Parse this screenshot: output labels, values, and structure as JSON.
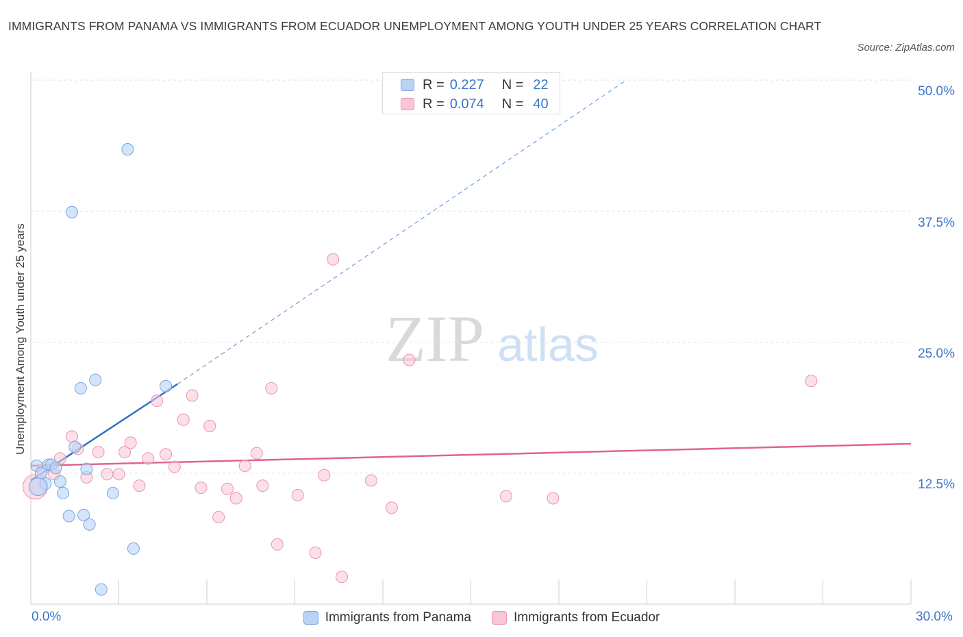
{
  "title": "IMMIGRANTS FROM PANAMA VS IMMIGRANTS FROM ECUADOR UNEMPLOYMENT AMONG YOUTH UNDER 25 YEARS CORRELATION CHART",
  "source": "Source: ZipAtlas.com",
  "watermark": {
    "zip": "ZIP",
    "atlas": "atlas"
  },
  "colors": {
    "panama_fill": "#b9d3f5",
    "panama_stroke": "#7aa6e0",
    "panama_line": "#2f6fc8",
    "ecuador_fill": "#f8c6d5",
    "ecuador_stroke": "#ec94b1",
    "ecuador_line": "#e0638f",
    "accent_text": "#3b74c9"
  },
  "legend": {
    "rows": [
      {
        "r_label": "R = ",
        "r_value": "0.227",
        "n_label": "N = ",
        "n_value": "22"
      },
      {
        "r_label": "R = ",
        "r_value": "0.074",
        "n_label": "N = ",
        "n_value": "40"
      }
    ]
  },
  "chart_data": {
    "type": "scatter",
    "title": "IMMIGRANTS FROM PANAMA VS IMMIGRANTS FROM ECUADOR UNEMPLOYMENT AMONG YOUTH UNDER 25 YEARS CORRELATION CHART",
    "xlabel": "",
    "ylabel": "Unemployment Among Youth under 25 years",
    "xlim": [
      0,
      30
    ],
    "ylim": [
      0,
      50
    ],
    "x_tick_labels": {
      "min": "0.0%",
      "max": "30.0%"
    },
    "y_ticks": [
      {
        "value": 12.5,
        "label": "12.5%"
      },
      {
        "value": 25,
        "label": "25.0%"
      },
      {
        "value": 37.5,
        "label": "37.5%"
      },
      {
        "value": 50,
        "label": "50.0%"
      }
    ],
    "legend_position": "bottom",
    "series": [
      {
        "name": "Immigrants from Panama",
        "R": 0.227,
        "N": 22,
        "trend": {
          "x0": 0,
          "y0": 11.8,
          "x1": 5.0,
          "y1": 21.0,
          "dashed_to_x": 20.3,
          "dashed_to_y": 50.0
        },
        "points": [
          [
            0.2,
            13.2
          ],
          [
            0.35,
            12.5
          ],
          [
            0.5,
            11.5
          ],
          [
            0.6,
            13.3
          ],
          [
            0.7,
            13.3
          ],
          [
            0.85,
            13.0
          ],
          [
            1.0,
            11.7
          ],
          [
            1.1,
            10.6
          ],
          [
            1.3,
            8.4
          ],
          [
            1.5,
            15.0
          ],
          [
            1.7,
            20.6
          ],
          [
            1.8,
            8.5
          ],
          [
            1.9,
            12.9
          ],
          [
            2.0,
            7.6
          ],
          [
            2.2,
            21.4
          ],
          [
            2.4,
            1.4
          ],
          [
            2.8,
            10.6
          ],
          [
            3.3,
            43.4
          ],
          [
            3.5,
            5.3
          ],
          [
            4.6,
            20.8
          ],
          [
            1.4,
            37.4
          ],
          [
            0.25,
            11.2
          ]
        ]
      },
      {
        "name": "Immigrants from Ecuador",
        "R": 0.074,
        "N": 40,
        "trend": {
          "x0": 0,
          "y0": 13.2,
          "x1": 30,
          "y1": 15.3
        },
        "points": [
          [
            0.15,
            11.2
          ],
          [
            0.8,
            12.4
          ],
          [
            1.0,
            13.9
          ],
          [
            1.4,
            16.0
          ],
          [
            1.6,
            14.8
          ],
          [
            1.9,
            12.1
          ],
          [
            2.3,
            14.5
          ],
          [
            2.6,
            12.4
          ],
          [
            3.0,
            12.4
          ],
          [
            3.2,
            14.5
          ],
          [
            3.4,
            15.4
          ],
          [
            3.7,
            11.3
          ],
          [
            4.0,
            13.9
          ],
          [
            4.3,
            19.4
          ],
          [
            4.6,
            14.3
          ],
          [
            4.9,
            13.1
          ],
          [
            5.2,
            17.6
          ],
          [
            5.5,
            19.9
          ],
          [
            5.8,
            11.1
          ],
          [
            6.1,
            17.0
          ],
          [
            6.4,
            8.3
          ],
          [
            6.7,
            11.0
          ],
          [
            7.0,
            10.1
          ],
          [
            7.3,
            13.2
          ],
          [
            7.7,
            14.4
          ],
          [
            7.9,
            11.3
          ],
          [
            8.2,
            20.6
          ],
          [
            8.4,
            5.7
          ],
          [
            9.1,
            10.4
          ],
          [
            9.7,
            4.9
          ],
          [
            10.0,
            12.3
          ],
          [
            10.3,
            32.9
          ],
          [
            10.6,
            2.6
          ],
          [
            11.6,
            11.8
          ],
          [
            12.3,
            9.2
          ],
          [
            12.9,
            23.3
          ],
          [
            16.2,
            10.3
          ],
          [
            17.8,
            10.1
          ],
          [
            26.6,
            21.3
          ],
          [
            0.4,
            12.8
          ]
        ]
      }
    ]
  }
}
